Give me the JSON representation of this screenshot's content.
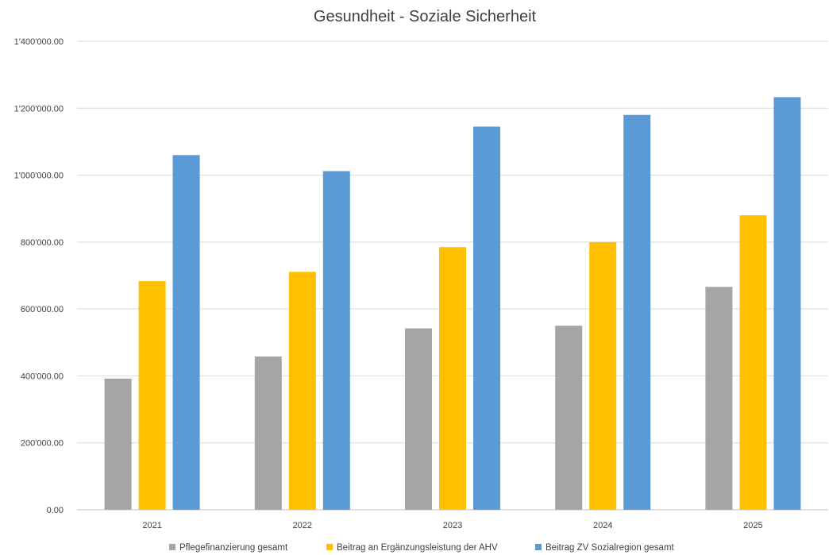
{
  "chart_data": {
    "type": "bar",
    "title": "Gesundheit - Soziale Sicherheit",
    "xlabel": "",
    "ylabel": "",
    "categories": [
      "2021",
      "2022",
      "2023",
      "2024",
      "2025"
    ],
    "ylim": [
      0,
      1400000
    ],
    "yticks": [
      0,
      200000,
      400000,
      600000,
      800000,
      1000000,
      1200000,
      1400000
    ],
    "ytick_labels": [
      "0.00",
      "200'000.00",
      "400'000.00",
      "600'000.00",
      "800'000.00",
      "1'000'000.00",
      "1'200'000.00",
      "1'400'000.00"
    ],
    "grid": true,
    "legend_position": "bottom",
    "series": [
      {
        "name": "Pflegefinanzierung gesamt",
        "color": "#a5a5a5",
        "values": [
          392000,
          458000,
          542000,
          550000,
          666000
        ]
      },
      {
        "name": "Beitrag an Ergänzungsleistung der AHV",
        "color": "#ffc000",
        "values": [
          683000,
          711000,
          785000,
          800000,
          880000
        ]
      },
      {
        "name": "Beitrag ZV Sozialregion gesamt",
        "color": "#5b9bd5",
        "values": [
          1060000,
          1012000,
          1145000,
          1180000,
          1233000
        ]
      }
    ]
  }
}
